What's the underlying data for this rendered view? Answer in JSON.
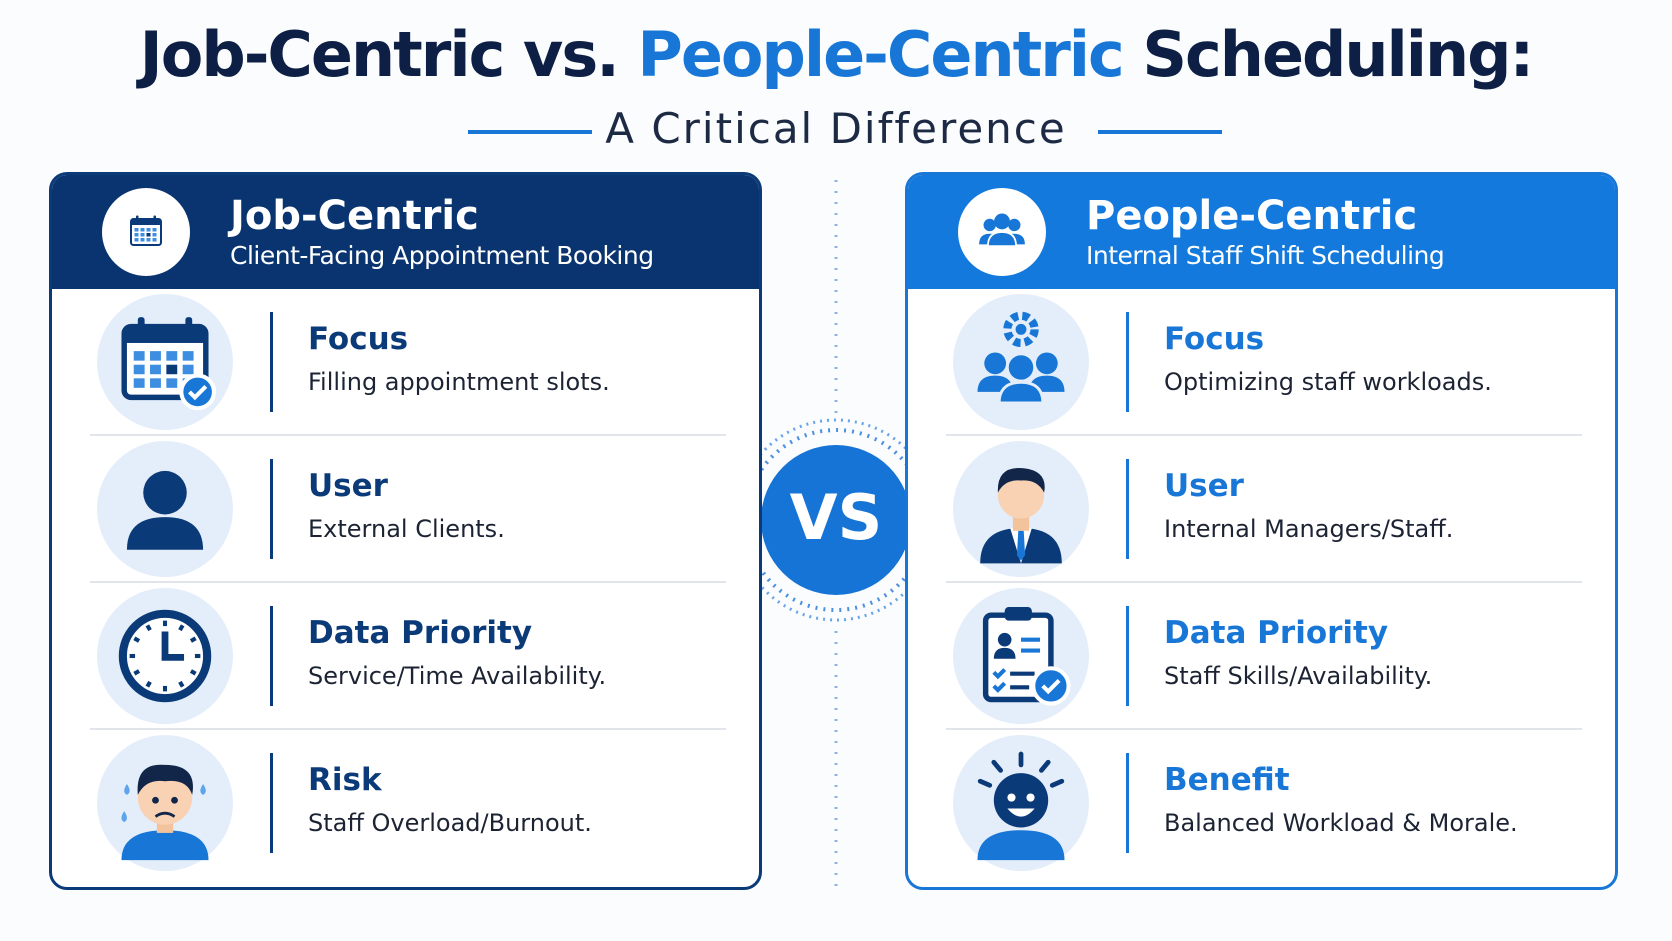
{
  "header": {
    "title_part1": "Job-Centric vs.",
    "title_part2": "People-Centric",
    "title_part3": "Scheduling:",
    "subtitle": "A Critical Difference"
  },
  "vs_label": "VS",
  "panels": [
    {
      "title": "Job-Centric",
      "subtitle": "Client-Facing Appointment Booking",
      "rows": [
        {
          "label": "Focus",
          "text": "Filling appointment slots."
        },
        {
          "label": "User",
          "text": "External Clients."
        },
        {
          "label": "Data Priority",
          "text": "Service/Time Availability."
        },
        {
          "label": "Risk",
          "text": "Staff Overload/Burnout."
        }
      ]
    },
    {
      "title": "People-Centric",
      "subtitle": "Internal Staff Shift Scheduling",
      "rows": [
        {
          "label": "Focus",
          "text": "Optimizing staff workloads."
        },
        {
          "label": "User",
          "text": "Internal Managers/Staff."
        },
        {
          "label": "Data Priority",
          "text": "Staff Skills/Availability."
        },
        {
          "label": "Benefit",
          "text": "Balanced Workload & Morale."
        }
      ]
    }
  ]
}
